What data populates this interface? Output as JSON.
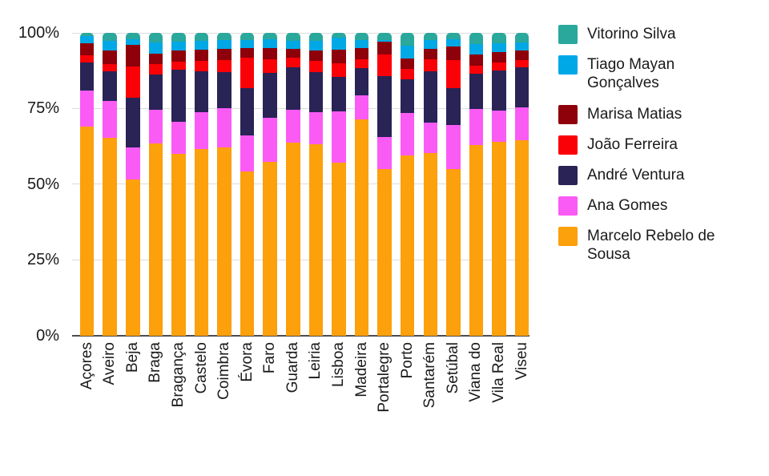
{
  "chart_data": {
    "type": "bar",
    "stacked": true,
    "normalized": "percent",
    "title": "",
    "xlabel": "",
    "ylabel": "",
    "ylim": [
      0,
      100
    ],
    "grid": true,
    "legend_position": "right",
    "y_ticks": [
      "0%",
      "25%",
      "50%",
      "75%",
      "100%"
    ],
    "categories": [
      "Açores",
      "Aveiro",
      "Beja",
      "Braga",
      "Bragança",
      "Castelo",
      "Coimbra",
      "Évora",
      "Faro",
      "Guarda",
      "Leiria",
      "Lisboa",
      "Madeira",
      "Portalegre",
      "Porto",
      "Santarém",
      "Setúbal",
      "Viana do",
      "Vila Real",
      "Viseu"
    ],
    "series": [
      {
        "name": "Marcelo Rebelo de Sousa",
        "key": "marcelo-rebelo-de-sousa",
        "color": "#fca00b",
        "values": [
          68.9,
          65.4,
          51.4,
          63.5,
          60.1,
          61.5,
          62.2,
          54.2,
          57.4,
          63.6,
          63.2,
          57.2,
          71.5,
          54.9,
          59.5,
          60.3,
          55.1,
          62.8,
          64.0,
          64.5
        ]
      },
      {
        "name": "Ana Gomes",
        "key": "ana-gomes",
        "color": "#fb5bf5",
        "values": [
          11.9,
          12.2,
          10.6,
          11.0,
          10.6,
          12.2,
          12.8,
          11.8,
          14.6,
          11.0,
          10.6,
          16.8,
          7.9,
          10.8,
          14.1,
          10.1,
          14.4,
          12.1,
          10.4,
          10.8
        ]
      },
      {
        "name": "André Ventura",
        "key": "andre-ventura",
        "color": "#292356",
        "values": [
          9.5,
          9.6,
          16.5,
          11.7,
          17.2,
          13.7,
          11.9,
          15.7,
          14.8,
          14.1,
          13.2,
          11.5,
          9.0,
          20.0,
          11.0,
          17.0,
          12.3,
          11.7,
          13.1,
          13.4
        ]
      },
      {
        "name": "João Ferreira",
        "key": "joao-ferreira",
        "color": "#fa0007",
        "values": [
          2.4,
          2.6,
          10.5,
          3.4,
          2.6,
          3.3,
          4.0,
          10.0,
          4.4,
          3.1,
          3.7,
          4.4,
          2.9,
          7.1,
          3.5,
          3.9,
          9.3,
          2.6,
          2.6,
          2.3
        ]
      },
      {
        "name": "Marisa Matias",
        "key": "marisa-matias",
        "color": "#8e000a",
        "values": [
          3.8,
          4.4,
          7.1,
          3.5,
          3.7,
          3.8,
          3.8,
          3.3,
          3.9,
          2.9,
          3.5,
          4.6,
          3.6,
          4.4,
          3.5,
          3.5,
          4.4,
          3.7,
          3.5,
          3.3
        ]
      },
      {
        "name": "Tiago Mayan Gonçalves",
        "key": "tiago-mayan-goncalves",
        "color": "#00a8e6",
        "values": [
          2.4,
          3.1,
          1.7,
          3.7,
          2.9,
          2.9,
          2.8,
          2.5,
          2.9,
          2.8,
          3.2,
          4.0,
          2.8,
          0.5,
          4.2,
          2.7,
          2.5,
          3.4,
          3.0,
          2.6
        ]
      },
      {
        "name": "Vitorino Silva",
        "key": "vitorino-silva",
        "color": "#2aa89c",
        "values": [
          1.1,
          2.7,
          2.2,
          3.2,
          2.9,
          2.6,
          2.5,
          2.5,
          2.0,
          2.5,
          2.6,
          1.5,
          2.3,
          2.3,
          4.2,
          2.5,
          2.0,
          3.7,
          3.4,
          3.1
        ]
      }
    ],
    "legend_order": [
      "Vitorino Silva",
      "Tiago Mayan Gonçalves",
      "Marisa Matias",
      "João Ferreira",
      "André Ventura",
      "Ana Gomes",
      "Marcelo Rebelo de Sousa"
    ]
  },
  "colors": {
    "gridline": "#dcdcdc",
    "axis_line": "#4d4d4d",
    "text": "#1a1a1a",
    "background": "#ffffff"
  }
}
